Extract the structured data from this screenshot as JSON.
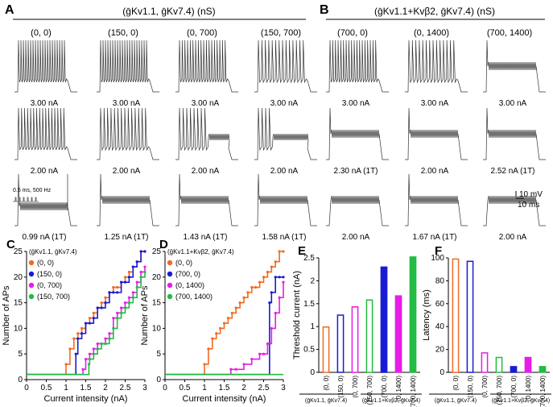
{
  "panels": {
    "A": {
      "letter": "A",
      "header": "(ḡKv1.1, ḡKv7.4) (nS)",
      "columns": [
        "(0, 0)",
        "(150, 0)",
        "(0, 700)",
        "(150, 700)"
      ],
      "rows": [
        [
          "3.00 nA",
          "3.00 nA",
          "3.00 nA",
          "3.00 nA"
        ],
        [
          "2.00 nA",
          "2.00 nA",
          "2.00 nA",
          "2.00 nA"
        ],
        [
          "0.99 nA (1T)",
          "1.25 nA (1T)",
          "1.43 nA (1T)",
          "1.58 nA (1T)"
        ]
      ],
      "inset": "0.5 ms, 500 Hz"
    },
    "B": {
      "letter": "B",
      "header": "(ḡKv1.1+Kvβ2, ḡKv7.4) (nS)",
      "columns": [
        "(700, 0)",
        "(0, 1400)",
        "(700, 1400)"
      ],
      "rows": [
        [
          "3.00 nA",
          "3.00 nA",
          "3.00 nA"
        ],
        [
          "2.30 nA (1T)",
          "2.00 nA",
          "2.52 nA (1T)"
        ],
        [
          "2.00 nA",
          "1.67 nA (1T)",
          "2.00 nA"
        ]
      ],
      "scalebar_v": "10 mV",
      "scalebar_h": "10 ms"
    }
  },
  "colors": {
    "series1": "#f26a21",
    "series2": "#1a1ad4",
    "series3": "#e81ce8",
    "series4": "#22bb44",
    "trace": "#333333"
  },
  "chart_data": [
    {
      "id": "C",
      "letter": "C",
      "type": "line",
      "xlabel": "Current intensity (nA)",
      "ylabel": "Number of APs",
      "xlim": [
        0,
        3
      ],
      "ylim": [
        0,
        25
      ],
      "xticks": [
        "0",
        "0.5",
        "1",
        "1.5",
        "2",
        "2.5",
        "3"
      ],
      "yticks": [
        "0",
        "5",
        "10",
        "15",
        "20",
        "25"
      ],
      "legend_title": "(ḡKv1.1, ḡKv7.4)",
      "series": [
        {
          "name": "(0, 0)",
          "x": [
            0,
            0.99,
            1.0,
            1.1,
            1.2,
            1.3,
            1.4,
            1.5,
            1.6,
            1.7,
            1.8,
            1.9,
            2.0,
            2.1,
            2.2,
            2.3,
            2.4,
            2.5,
            2.6,
            2.7,
            2.8,
            2.9,
            3.0
          ],
          "y": [
            1,
            1,
            3,
            6,
            8,
            9,
            10,
            11,
            12,
            13,
            14,
            15,
            16,
            17,
            18,
            18,
            19,
            20,
            21,
            22,
            23,
            25,
            25
          ]
        },
        {
          "name": "(150, 0)",
          "x": [
            0,
            1.2,
            1.25,
            1.3,
            1.4,
            1.5,
            1.6,
            1.7,
            1.8,
            1.9,
            2.0,
            2.1,
            2.2,
            2.3,
            2.4,
            2.5,
            2.6,
            2.7,
            2.8,
            2.9,
            3.0
          ],
          "y": [
            1,
            1,
            5,
            8,
            9,
            11,
            11,
            12,
            14,
            14,
            15,
            17,
            17,
            17,
            19,
            19,
            20,
            22,
            23,
            25,
            25
          ]
        },
        {
          "name": "(0, 700)",
          "x": [
            0,
            1.4,
            1.43,
            1.5,
            1.6,
            1.7,
            1.8,
            1.9,
            2.0,
            2.1,
            2.2,
            2.3,
            2.4,
            2.5,
            2.6,
            2.7,
            2.8,
            2.9,
            3.0
          ],
          "y": [
            1,
            1,
            2,
            4,
            5,
            6,
            7,
            7,
            8,
            9,
            12,
            13,
            14,
            15,
            16,
            17,
            19,
            21,
            22
          ]
        },
        {
          "name": "(150, 700)",
          "x": [
            0,
            1.55,
            1.58,
            1.6,
            1.7,
            1.8,
            1.9,
            2.0,
            2.1,
            2.2,
            2.3,
            2.4,
            2.5,
            2.6,
            2.7,
            2.8,
            2.9,
            3.0
          ],
          "y": [
            1,
            1,
            3,
            4,
            5,
            6,
            7,
            7,
            8,
            10,
            12,
            13,
            14,
            15,
            16,
            18,
            20,
            21
          ]
        }
      ]
    },
    {
      "id": "D",
      "letter": "D",
      "type": "line",
      "xlabel": "Current intensity (nA)",
      "ylabel": "Number of APs",
      "xlim": [
        0,
        3
      ],
      "ylim": [
        0,
        25
      ],
      "xticks": [
        "0",
        "0.5",
        "1",
        "1.5",
        "2",
        "2.5",
        "3"
      ],
      "yticks": [
        "0",
        "5",
        "10",
        "15",
        "20",
        "25"
      ],
      "legend_title": "(ḡKv1.1+Kvβ2, ḡKv7.4)",
      "series": [
        {
          "name": "(0, 0)",
          "x": [
            0,
            0.99,
            1.0,
            1.1,
            1.2,
            1.3,
            1.4,
            1.5,
            1.6,
            1.7,
            1.8,
            1.9,
            2.0,
            2.1,
            2.2,
            2.3,
            2.4,
            2.5,
            2.6,
            2.7,
            2.8,
            2.9,
            3.0
          ],
          "y": [
            1,
            1,
            3,
            6,
            8,
            9,
            10,
            11,
            12,
            13,
            14,
            15,
            16,
            17,
            18,
            18,
            19,
            20,
            21,
            22,
            23,
            25,
            25
          ]
        },
        {
          "name": "(700, 0)",
          "x": [
            0,
            2.29,
            2.3,
            2.6,
            2.65,
            2.7,
            2.8,
            2.9,
            3.0
          ],
          "y": [
            1,
            1,
            1,
            1,
            15,
            17,
            20,
            20,
            20
          ]
        },
        {
          "name": "(0, 1400)",
          "x": [
            0,
            1.65,
            1.67,
            1.8,
            2.0,
            2.2,
            2.4,
            2.5,
            2.6,
            2.7,
            2.8,
            2.9,
            3.0
          ],
          "y": [
            1,
            1,
            2,
            2,
            3,
            4,
            5,
            5,
            7,
            10,
            13,
            16,
            19
          ]
        },
        {
          "name": "(700, 1400)",
          "x": [
            0,
            2.5,
            2.52,
            3.0
          ],
          "y": [
            1,
            1,
            1,
            1
          ]
        }
      ]
    },
    {
      "id": "E",
      "letter": "E",
      "type": "bar",
      "ylabel": "Threshold current (nA)",
      "ylim": [
        0,
        2.5
      ],
      "yticks": [
        "0",
        "0.5",
        "1",
        "1.5",
        "2",
        "2.5"
      ],
      "categories": [
        "(0, 0)",
        "(150, 0)",
        "(0, 700)",
        "(150, 700)",
        "(700, 0)",
        "(0, 1400)",
        "(700, 1400)"
      ],
      "values": [
        0.99,
        1.25,
        1.43,
        1.58,
        2.3,
        1.67,
        2.52
      ],
      "group_labels": [
        "(ḡKv1.1, ḡKv7.4)",
        "(ḡKv1.1+Kvβ2, ḡKv7.4)"
      ]
    },
    {
      "id": "F",
      "letter": "F",
      "type": "bar",
      "ylabel": "Latency (ms)",
      "ylim": [
        0,
        100
      ],
      "yticks": [
        "0",
        "20",
        "40",
        "60",
        "80",
        "100"
      ],
      "categories": [
        "(0, 0)",
        "(150, 0)",
        "(0, 700)",
        "(150, 700)",
        "(700, 0)",
        "(0, 1400)",
        "(700, 1400)"
      ],
      "values": [
        99,
        97,
        17,
        13,
        5,
        13,
        5
      ],
      "group_labels": [
        "(ḡKv1.1, ḡKv7.4)",
        "(ḡKv1.1+Kvβ2, ḡKv7.4)"
      ]
    }
  ]
}
